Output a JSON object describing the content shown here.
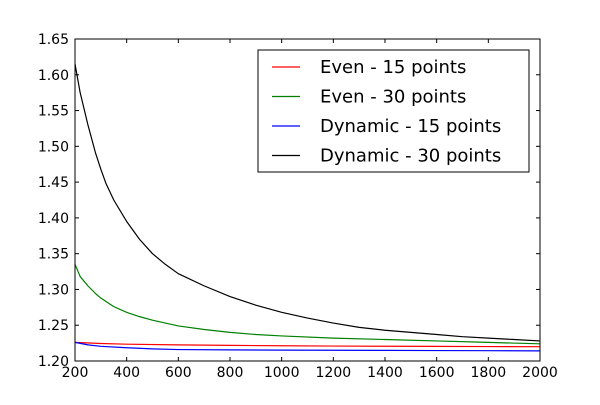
{
  "chart_data": {
    "type": "line",
    "xlim": [
      200,
      2000
    ],
    "ylim": [
      1.2,
      1.65
    ],
    "x_ticks": [
      200,
      400,
      600,
      800,
      1000,
      1200,
      1400,
      1600,
      1800,
      2000
    ],
    "x_tick_labels": [
      "200",
      "400",
      "600",
      "800",
      "1000",
      "1200",
      "1400",
      "1600",
      "1800",
      "2000"
    ],
    "y_ticks": [
      1.2,
      1.25,
      1.3,
      1.35,
      1.4,
      1.45,
      1.5,
      1.55,
      1.6,
      1.65
    ],
    "y_tick_labels": [
      "1.20",
      "1.25",
      "1.30",
      "1.35",
      "1.40",
      "1.45",
      "1.50",
      "1.55",
      "1.60",
      "1.65"
    ],
    "grid": false,
    "legend_position": "top-right",
    "series": [
      {
        "name": "Even - 15 points",
        "color": "#ff0000",
        "x": [
          200,
          300,
          400,
          600,
          800,
          1000,
          1200,
          1400,
          1600,
          1800,
          2000
        ],
        "y": [
          1.226,
          1.2245,
          1.2235,
          1.2225,
          1.2218,
          1.2213,
          1.2209,
          1.2206,
          1.2204,
          1.2202,
          1.22
        ]
      },
      {
        "name": "Even - 30 points",
        "color": "#008000",
        "x": [
          200,
          220,
          250,
          280,
          300,
          350,
          400,
          450,
          500,
          600,
          700,
          800,
          900,
          1000,
          1200,
          1400,
          1600,
          1800,
          2000
        ],
        "y": [
          1.335,
          1.318,
          1.305,
          1.294,
          1.288,
          1.276,
          1.268,
          1.262,
          1.257,
          1.249,
          1.244,
          1.24,
          1.237,
          1.235,
          1.232,
          1.23,
          1.228,
          1.226,
          1.224
        ]
      },
      {
        "name": "Dynamic - 15 points",
        "color": "#0000ff",
        "x": [
          200,
          250,
          300,
          400,
          500,
          600,
          800,
          1000,
          1200,
          1400,
          1600,
          1800,
          2000
        ],
        "y": [
          1.226,
          1.2225,
          1.2205,
          1.2185,
          1.217,
          1.216,
          1.2155,
          1.2152,
          1.215,
          1.2148,
          1.2146,
          1.2144,
          1.2142
        ]
      },
      {
        "name": "Dynamic - 30 points",
        "color": "#000000",
        "x": [
          200,
          220,
          250,
          280,
          300,
          320,
          350,
          400,
          450,
          500,
          550,
          600,
          700,
          800,
          900,
          1000,
          1100,
          1200,
          1300,
          1400,
          1500,
          1600,
          1700,
          1800,
          1900,
          2000
        ],
        "y": [
          1.615,
          1.575,
          1.53,
          1.49,
          1.468,
          1.448,
          1.425,
          1.395,
          1.37,
          1.35,
          1.335,
          1.322,
          1.305,
          1.29,
          1.278,
          1.268,
          1.26,
          1.253,
          1.247,
          1.243,
          1.24,
          1.237,
          1.234,
          1.232,
          1.23,
          1.228
        ]
      }
    ]
  }
}
